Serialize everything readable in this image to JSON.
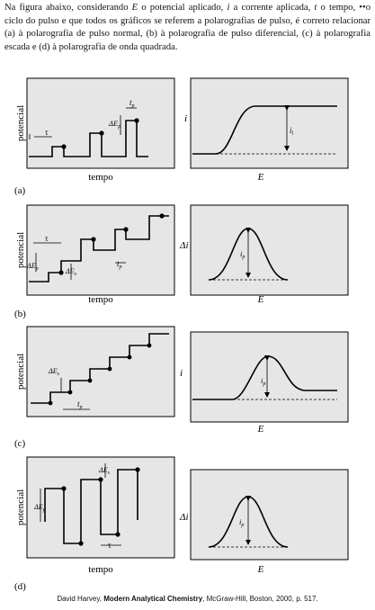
{
  "intro": {
    "p1": "Na figura abaixo, considerando ",
    "E": "E",
    "p2": " o potencial aplicado, ",
    "i": "i",
    "p3": " a corrente aplicada, ",
    "t": "t",
    "p4": " o tempo, ",
    "tau": "••o",
    "p5": " ciclo do pulso e que todos os gráficos se referem a polarografias de pulso, é correto relacionar (a) à polarografia de pulso normal, (b) à polarografia de pulso diferencial, (c) à polarografia escada e (d) à polarografia de onda quadrada."
  },
  "panels": {
    "a": {
      "label": "(a)",
      "ylabel": "potencial",
      "xlabel": "tempo",
      "tau": "τ",
      "tp": "t",
      "tp_sub": "p",
      "dE": "ΔE",
      "dE_sub": "p",
      "right_ylabel": "i",
      "right_xlabel": "E",
      "right_measure": "i",
      "right_measure_sub": "l"
    },
    "b": {
      "label": "(b)",
      "ylabel": "potencial",
      "xlabel": "tempo",
      "tau": "τ",
      "tp": "t",
      "tp_sub": "p",
      "dEp": "ΔE",
      "dEp_sub": "p",
      "dEs": "ΔE",
      "dEs_sub": "s",
      "right_ylabel": "Δi",
      "right_xlabel": "E",
      "right_measure": "i",
      "right_measure_sub": "p"
    },
    "c": {
      "label": "(c)",
      "ylabel": "potencial",
      "xlabel": "tempo",
      "tp": "t",
      "tp_sub": "p",
      "dEs": "ΔE",
      "dEs_sub": "s",
      "right_ylabel": "i",
      "right_xlabel": "E",
      "right_measure": "i",
      "right_measure_sub": "p"
    },
    "d": {
      "label": "(d)",
      "ylabel": "potencial",
      "xlabel": "tempo",
      "tau": "τ",
      "dEp": "ΔE",
      "dEp_sub": "p",
      "dEs": "ΔE",
      "dEs_sub": "s",
      "right_ylabel": "Δi",
      "right_xlabel": "E",
      "right_measure": "i",
      "right_measure_sub": "p"
    }
  },
  "citation": {
    "author": "David Harvey, ",
    "title": "Modern Analytical Chemistry",
    "rest": ", McGraw-Hill, Boston, 2000, p. 517."
  }
}
